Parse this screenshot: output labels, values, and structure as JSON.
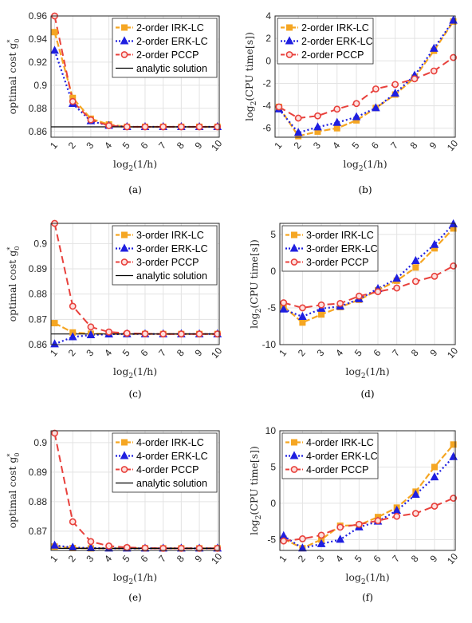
{
  "colors": {
    "irk": "#f5a623",
    "erk": "#1f1fe0",
    "pccp": "#e8413c",
    "analytic": "#000000",
    "grid": "#e3e3e3",
    "axis": "#262626"
  },
  "chart_data": [
    {
      "id": "a",
      "type": "line",
      "caption": "(a)",
      "xlabel": "log2(1/h)",
      "ylabel": "optimal cost g0*",
      "x": [
        1,
        2,
        3,
        4,
        5,
        6,
        7,
        8,
        9,
        10
      ],
      "xlim": [
        0.8,
        10.1
      ],
      "ylim": [
        0.855,
        0.96
      ],
      "yticks": [
        0.86,
        0.88,
        0.9,
        0.92,
        0.94,
        0.96
      ],
      "ytick_labels": [
        "0.86",
        "0.88",
        "0.9",
        "0.92",
        "0.94",
        "0.96"
      ],
      "legend": "top-right",
      "grid": true,
      "series": [
        {
          "name": "2-order IRK-LC",
          "style": "irk",
          "values": [
            0.946,
            0.889,
            0.871,
            0.866,
            0.864,
            0.864,
            0.864,
            0.864,
            0.864,
            0.864
          ]
        },
        {
          "name": "2-order ERK-LC",
          "style": "erk",
          "values": [
            0.93,
            0.884,
            0.869,
            0.865,
            0.864,
            0.864,
            0.864,
            0.864,
            0.864,
            0.864
          ]
        },
        {
          "name": "2-order PCCP",
          "style": "pccp",
          "values": [
            0.96,
            0.886,
            0.87,
            0.865,
            0.864,
            0.864,
            0.864,
            0.864,
            0.864,
            0.864
          ]
        },
        {
          "name": "analytic solution",
          "style": "analytic",
          "constant": 0.864
        }
      ]
    },
    {
      "id": "b",
      "type": "line",
      "caption": "(b)",
      "xlabel": "log2(1/h)",
      "ylabel": "log2(CPU time[s])",
      "x": [
        1,
        2,
        3,
        4,
        5,
        6,
        7,
        8,
        9,
        10
      ],
      "xlim": [
        0.8,
        10.1
      ],
      "ylim": [
        -6.8,
        4
      ],
      "yticks": [
        -6,
        -4,
        -2,
        0,
        2,
        4
      ],
      "ytick_labels": [
        "-6",
        "-4",
        "-2",
        "0",
        "2",
        "4"
      ],
      "legend": "top-left",
      "grid": true,
      "series": [
        {
          "name": "2-order IRK-LC",
          "style": "irk",
          "values": [
            -4.1,
            -6.7,
            -6.3,
            -6.0,
            -5.3,
            -4.2,
            -3.0,
            -1.5,
            0.9,
            3.5
          ]
        },
        {
          "name": "2-order ERK-LC",
          "style": "erk",
          "values": [
            -4.3,
            -6.4,
            -5.9,
            -5.5,
            -5.0,
            -4.2,
            -2.9,
            -1.3,
            1.1,
            3.6
          ]
        },
        {
          "name": "2-order PCCP",
          "style": "pccp",
          "values": [
            -4.1,
            -5.1,
            -4.9,
            -4.3,
            -3.8,
            -2.5,
            -2.1,
            -1.6,
            -0.9,
            0.3
          ]
        }
      ]
    },
    {
      "id": "c",
      "type": "line",
      "caption": "(c)",
      "xlabel": "log2(1/h)",
      "ylabel": "optimal cost g0*",
      "x": [
        1,
        2,
        3,
        4,
        5,
        6,
        7,
        8,
        9,
        10
      ],
      "xlim": [
        0.8,
        10.1
      ],
      "ylim": [
        0.86,
        0.908
      ],
      "yticks": [
        0.86,
        0.87,
        0.88,
        0.89,
        0.9
      ],
      "ytick_labels": [
        "0.86",
        "0.87",
        "0.88",
        "0.89",
        "0.9"
      ],
      "legend": "top-right",
      "grid": true,
      "series": [
        {
          "name": "3-order IRK-LC",
          "style": "irk",
          "values": [
            0.8685,
            0.8648,
            0.8643,
            0.8642,
            0.8642,
            0.8642,
            0.8642,
            0.8642,
            0.8642,
            0.8642
          ]
        },
        {
          "name": "3-order ERK-LC",
          "style": "erk",
          "values": [
            0.8602,
            0.863,
            0.8638,
            0.8641,
            0.8642,
            0.8642,
            0.8642,
            0.8642,
            0.8642,
            0.8642
          ]
        },
        {
          "name": "3-order PCCP",
          "style": "pccp",
          "values": [
            0.908,
            0.8752,
            0.867,
            0.865,
            0.8645,
            0.8643,
            0.8642,
            0.8642,
            0.8642,
            0.8642
          ]
        },
        {
          "name": "analytic solution",
          "style": "analytic",
          "constant": 0.8642
        }
      ]
    },
    {
      "id": "d",
      "type": "line",
      "caption": "(d)",
      "xlabel": "log2(1/h)",
      "ylabel": "log2(CPU time[s])",
      "x": [
        1,
        2,
        3,
        4,
        5,
        6,
        7,
        8,
        9,
        10
      ],
      "xlim": [
        0.8,
        10.1
      ],
      "ylim": [
        -10,
        6.5
      ],
      "yticks": [
        -10,
        -5,
        0,
        5
      ],
      "ytick_labels": [
        "-10",
        "-5",
        "0",
        "5"
      ],
      "legend": "top-left",
      "grid": true,
      "series": [
        {
          "name": "3-order IRK-LC",
          "style": "irk",
          "values": [
            -4.8,
            -7.0,
            -5.9,
            -4.9,
            -3.9,
            -2.6,
            -1.3,
            0.5,
            3.1,
            5.8
          ]
        },
        {
          "name": "3-order ERK-LC",
          "style": "erk",
          "values": [
            -5.2,
            -6.2,
            -5.1,
            -4.8,
            -3.8,
            -2.4,
            -1.0,
            1.4,
            3.6,
            6.4
          ]
        },
        {
          "name": "3-order PCCP",
          "style": "pccp",
          "values": [
            -4.3,
            -5.0,
            -4.6,
            -4.4,
            -3.4,
            -2.8,
            -2.3,
            -1.4,
            -0.7,
            0.7
          ]
        }
      ]
    },
    {
      "id": "e",
      "type": "line",
      "caption": "(e)",
      "xlabel": "log2(1/h)",
      "ylabel": "optimal cost g0*",
      "x": [
        1,
        2,
        3,
        4,
        5,
        6,
        7,
        8,
        9,
        10
      ],
      "xlim": [
        0.8,
        10.1
      ],
      "ylim": [
        0.8635,
        0.904
      ],
      "yticks": [
        0.87,
        0.88,
        0.89,
        0.9
      ],
      "ytick_labels": [
        "0.87",
        "0.88",
        "0.89",
        "0.9"
      ],
      "legend": "top-right",
      "grid": true,
      "series": [
        {
          "name": "4-order IRK-LC",
          "style": "irk",
          "values": [
            0.8648,
            0.8643,
            0.8642,
            0.8642,
            0.8642,
            0.8642,
            0.8642,
            0.8642,
            0.8642,
            0.8642
          ]
        },
        {
          "name": "4-order ERK-LC",
          "style": "erk",
          "values": [
            0.8652,
            0.8645,
            0.8643,
            0.8642,
            0.8642,
            0.8642,
            0.8642,
            0.8642,
            0.8642,
            0.8642
          ]
        },
        {
          "name": "4-order PCCP",
          "style": "pccp",
          "values": [
            0.9032,
            0.8732,
            0.8665,
            0.865,
            0.8645,
            0.8643,
            0.8642,
            0.8642,
            0.8642,
            0.8642
          ]
        },
        {
          "name": "analytic solution",
          "style": "analytic",
          "constant": 0.8642
        }
      ]
    },
    {
      "id": "f",
      "type": "line",
      "caption": "(f)",
      "xlabel": "log2(1/h)",
      "ylabel": "log2(CPU time[s])",
      "x": [
        1,
        2,
        3,
        4,
        5,
        6,
        7,
        8,
        9,
        10
      ],
      "xlim": [
        0.8,
        10.1
      ],
      "ylim": [
        -6.5,
        10
      ],
      "yticks": [
        -5,
        0,
        5,
        10
      ],
      "ytick_labels": [
        "-5",
        "0",
        "5",
        "10"
      ],
      "legend": "top-left",
      "grid": true,
      "series": [
        {
          "name": "4-order IRK-LC",
          "style": "irk",
          "values": [
            -4.9,
            -6.2,
            -5.0,
            -3.1,
            -3.0,
            -1.9,
            -0.6,
            1.6,
            5.0,
            8.1
          ]
        },
        {
          "name": "4-order ERK-LC",
          "style": "erk",
          "values": [
            -4.5,
            -6.2,
            -5.6,
            -5.0,
            -3.3,
            -2.5,
            -1.0,
            1.2,
            3.6,
            6.4
          ]
        },
        {
          "name": "4-order PCCP",
          "style": "pccp",
          "values": [
            -5.2,
            -4.9,
            -4.4,
            -3.3,
            -2.9,
            -2.4,
            -1.8,
            -1.4,
            -0.4,
            0.7
          ]
        }
      ]
    }
  ]
}
